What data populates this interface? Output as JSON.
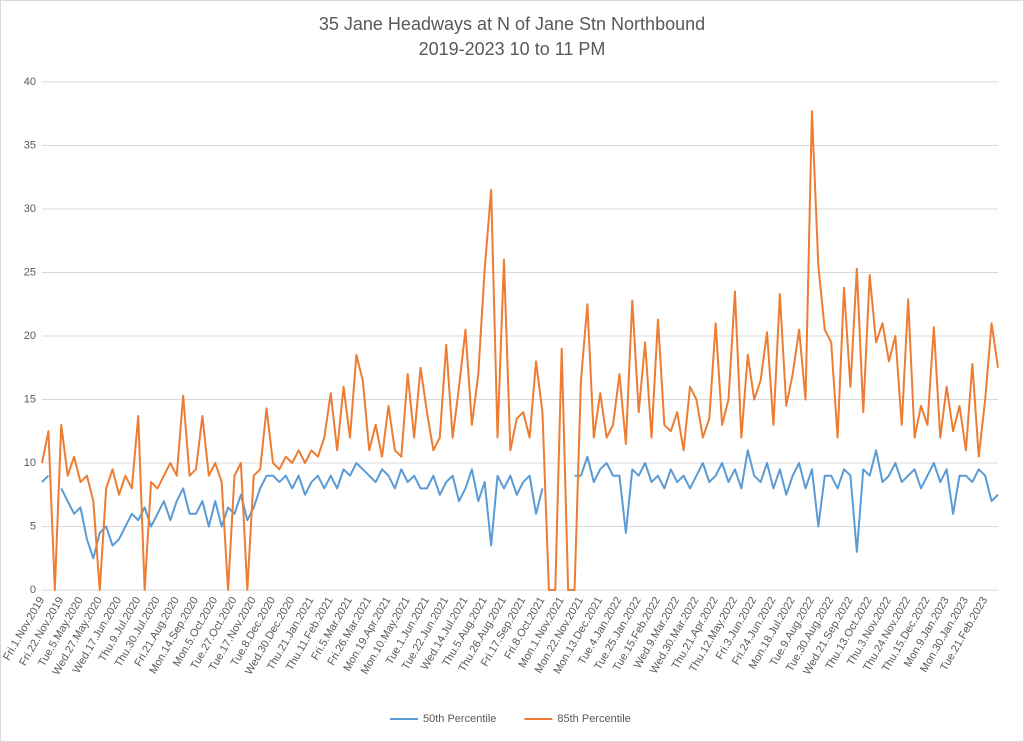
{
  "chart_data": {
    "type": "line",
    "title": "35 Jane Headways at N of Jane Stn Northbound",
    "subtitle": "2019-2023 10 to 11 PM",
    "categories": [
      "Fri.1.Nov.2019",
      null,
      null,
      "Fri.22.Nov.2019",
      null,
      null,
      "Tue.5.May.2020",
      null,
      null,
      "Wed.27.May.2020",
      null,
      null,
      "Wed.17.Jun.2020",
      null,
      null,
      "Thu.9.Jul.2020",
      null,
      null,
      "Thu.30.Jul.2020",
      null,
      null,
      "Fri.21.Aug.2020",
      null,
      null,
      "Mon.14.Sep.2020",
      null,
      null,
      "Mon.5.Oct.2020",
      null,
      null,
      "Tue.27.Oct.2020",
      null,
      null,
      "Tue.17.Nov.2020",
      null,
      null,
      "Tue.8.Dec.2020",
      null,
      null,
      "Wed.30.Dec.2020",
      null,
      null,
      "Thu.21.Jan.2021",
      null,
      null,
      "Thu.11.Feb.2021",
      null,
      null,
      "Fri.5.Mar.2021",
      null,
      null,
      "Fri.26.Mar.2021",
      null,
      null,
      "Mon.19.Apr.2021",
      null,
      null,
      "Mon.10.May.2021",
      null,
      null,
      "Tue.1.Jun.2021",
      null,
      null,
      "Tue.22.Jun.2021",
      null,
      null,
      "Wed.14.Jul.2021",
      null,
      null,
      "Thu.5.Aug.2021",
      null,
      null,
      "Thu.26.Aug.2021",
      null,
      null,
      "Fri.17.Sep.2021",
      null,
      null,
      "Fri.8.Oct.2021",
      null,
      null,
      "Mon.1.Nov.2021",
      null,
      null,
      "Mon.22.Nov.2021",
      null,
      null,
      "Mon.13.Dec.2021",
      null,
      null,
      "Tue.4.Jan.2022",
      null,
      null,
      "Tue.25.Jan.2022",
      null,
      null,
      "Tue.15.Feb.2022",
      null,
      null,
      "Wed.9.Mar.2022",
      null,
      null,
      "Wed.30.Mar.2022",
      null,
      null,
      "Thu.21.Apr.2022",
      null,
      null,
      "Thu.12.May.2022",
      null,
      null,
      "Fri.3.Jun.2022",
      null,
      null,
      "Fri.24.Jun.2022",
      null,
      null,
      "Mon.18.Jul.2022",
      null,
      null,
      "Tue.9.Aug.2022",
      null,
      null,
      "Tue.30.Aug.2022",
      null,
      null,
      "Wed.21.Sep.2022",
      null,
      null,
      "Thu.13.Oct.2022",
      null,
      null,
      "Thu.3.Nov.2022",
      null,
      null,
      "Thu.24.Nov.2022",
      null,
      null,
      "Thu.15.Dec.2022",
      null,
      null,
      "Mon.9.Jan.2023",
      null,
      null,
      "Mon.30.Jan.2023",
      null,
      null,
      "Tue.21.Feb.2023",
      null,
      null
    ],
    "series": [
      {
        "name": "50th Percentile",
        "color": "#5b9bd5",
        "values": [
          8.5,
          9,
          null,
          8,
          7,
          6,
          6.5,
          4,
          2.5,
          4.5,
          5,
          3.5,
          4,
          5,
          6,
          5.5,
          6.5,
          5,
          6,
          7,
          5.5,
          7,
          8,
          6,
          6,
          7,
          5,
          7,
          5,
          6.5,
          6,
          7.5,
          5.5,
          6.5,
          8,
          9,
          9,
          8.5,
          9,
          8,
          9,
          7.5,
          8.5,
          9,
          8,
          9,
          8,
          9.5,
          9,
          10,
          9.5,
          9,
          8.5,
          9.5,
          9,
          8,
          9.5,
          8.5,
          9,
          8,
          8,
          9,
          7.5,
          8.5,
          9,
          7,
          8,
          9.5,
          7,
          8.5,
          3.5,
          9,
          8,
          9,
          7.5,
          8.5,
          9,
          6,
          8,
          null,
          null,
          null,
          null,
          9,
          9,
          10.5,
          8.5,
          9.5,
          10,
          9,
          9,
          4.5,
          9.5,
          9,
          10,
          8.5,
          9,
          8,
          9.5,
          8.5,
          9,
          8,
          9,
          10,
          8.5,
          9,
          10,
          8.5,
          9.5,
          8,
          11,
          9,
          8.5,
          10,
          8,
          9.5,
          7.5,
          9,
          10,
          8,
          9.5,
          5,
          9,
          9,
          8,
          9.5,
          9,
          3,
          9.5,
          9,
          11,
          8.5,
          9,
          10,
          8.5,
          9,
          9.5,
          8,
          9,
          10,
          8.5,
          9.5,
          6,
          9,
          9,
          8.5,
          9.5,
          9,
          7,
          7.5
        ]
      },
      {
        "name": "85th Percentile",
        "color": "#ed7d31",
        "values": [
          10,
          12.5,
          0,
          13,
          9,
          10.5,
          8.5,
          9,
          7,
          0,
          8,
          9.5,
          7.5,
          9,
          8,
          13.7,
          0,
          8.5,
          8,
          9,
          10,
          9,
          15.3,
          9,
          9.5,
          13.7,
          9,
          10,
          8.5,
          0,
          9,
          10,
          0,
          9,
          9.5,
          14.3,
          10,
          9.5,
          10.5,
          10,
          11,
          10,
          11,
          10.5,
          12,
          15.5,
          11,
          16,
          12,
          18.5,
          16.5,
          11,
          13,
          10.5,
          14.5,
          11,
          10.5,
          17,
          12,
          17.5,
          14,
          11,
          12,
          19.3,
          12,
          16,
          20.5,
          13,
          17,
          25.3,
          31.5,
          12,
          26,
          11,
          13.5,
          14,
          12,
          18,
          14,
          0,
          0,
          19,
          0,
          0,
          16.5,
          22.5,
          12,
          15.5,
          12,
          13,
          17,
          11.5,
          22.8,
          14,
          19.5,
          12,
          21.3,
          13,
          12.5,
          14,
          11,
          16,
          15,
          12,
          13.5,
          21,
          13,
          15,
          23.5,
          12,
          18.5,
          15,
          16.5,
          20.3,
          13,
          23.3,
          14.5,
          17,
          20.5,
          15,
          37.7,
          25.5,
          20.5,
          19.5,
          12,
          23.8,
          16,
          25.3,
          14,
          24.8,
          19.5,
          21,
          18,
          20,
          13,
          22.9,
          12,
          14.5,
          13,
          20.7,
          12,
          16,
          12.5,
          14.5,
          11,
          17.8,
          10.5,
          15,
          21,
          17.5
        ]
      }
    ],
    "ylim": [
      0,
      40
    ],
    "yticks": [
      0,
      5,
      10,
      15,
      20,
      25,
      30,
      35,
      40
    ],
    "grid": true,
    "legend": "bottom"
  }
}
